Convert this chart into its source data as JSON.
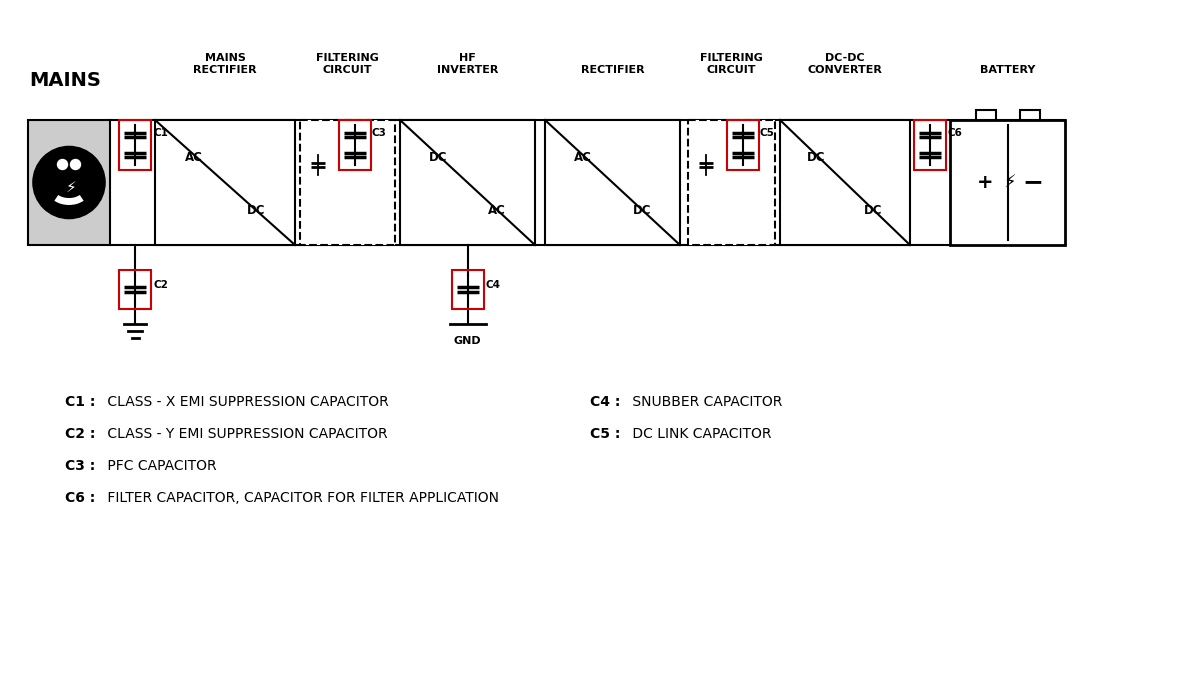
{
  "bg_color": "#ffffff",
  "line_color": "#000000",
  "red_color": "#cc0000",
  "labels": {
    "mains": "MAINS",
    "mains_rectifier": "MAINS\nRECTIFIER",
    "filtering_circuit1": "FILTERING\nCIRCUIT",
    "hf_inverter": "HF\nINVERTER",
    "rectifier": "RECTIFIER",
    "filtering_circuit2": "FILTERING\nCIRCUIT",
    "dc_dc_converter": "DC-DC\nCONVERTER",
    "battery": "BATTERY"
  },
  "legend": [
    {
      "key": "C1",
      "desc": " CLASS - X EMI SUPPRESSION CAPACITOR",
      "col": 0
    },
    {
      "key": "C2",
      "desc": " CLASS - Y EMI SUPPRESSION CAPACITOR",
      "col": 0
    },
    {
      "key": "C3",
      "desc": " PFC CAPACITOR",
      "col": 0
    },
    {
      "key": "C6",
      "desc": " FILTER CAPACITOR, CAPACITOR FOR FILTER APPLICATION",
      "col": 0
    },
    {
      "key": "C4",
      "desc": " SNUBBER CAPACITOR",
      "col": 1
    },
    {
      "key": "C5",
      "desc": " DC LINK CAPACITOR",
      "col": 1
    }
  ]
}
